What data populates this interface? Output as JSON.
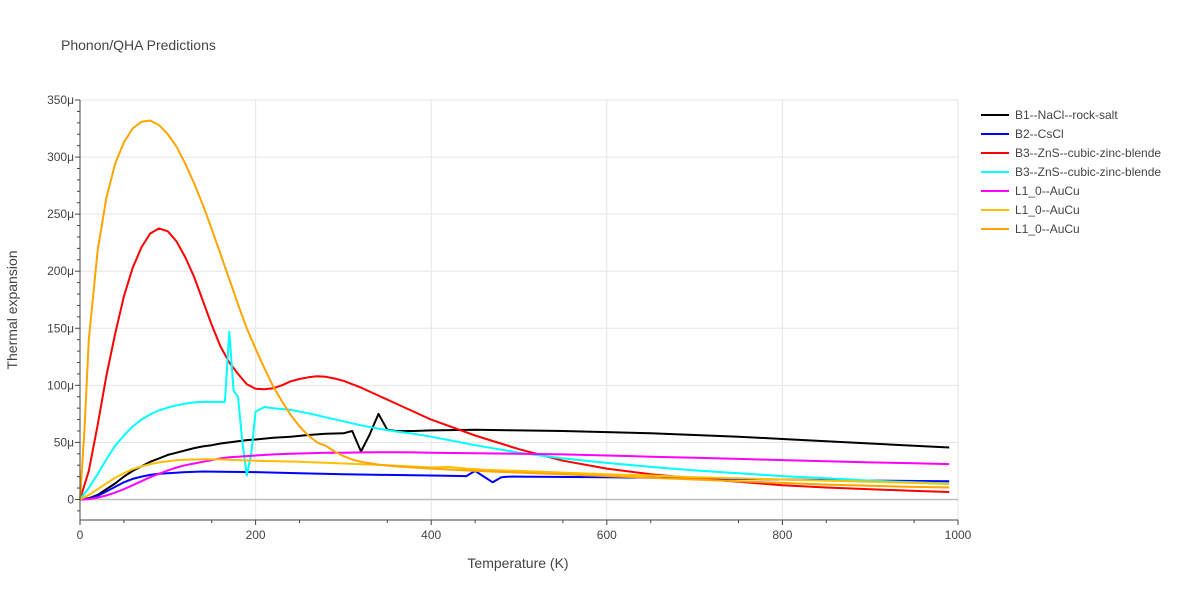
{
  "chart_data": {
    "type": "line",
    "title": "Phonon/QHA Predictions",
    "xlabel": "Temperature (K)",
    "ylabel": "Thermal expansion",
    "xlim": [
      0,
      1000
    ],
    "ylim": [
      -18,
      350
    ],
    "x_ticks": [
      0,
      200,
      400,
      600,
      800,
      1000
    ],
    "x_tick_labels": [
      "0",
      "200",
      "400",
      "600",
      "800",
      "1000"
    ],
    "y_ticks": [
      0,
      50,
      100,
      150,
      200,
      250,
      300,
      350
    ],
    "y_tick_labels": [
      "0",
      "50μ",
      "100μ",
      "150μ",
      "200μ",
      "250μ",
      "300μ",
      "350μ"
    ],
    "grid": true,
    "legend_position": "top-right",
    "series": [
      {
        "name": "B1--NaCl--rock-salt",
        "color": "#000000",
        "x": [
          0,
          10,
          20,
          30,
          40,
          50,
          60,
          70,
          80,
          90,
          100,
          110,
          120,
          130,
          140,
          150,
          160,
          170,
          180,
          190,
          200,
          220,
          240,
          260,
          280,
          300,
          310,
          320,
          330,
          340,
          350,
          360,
          380,
          400,
          450,
          500,
          550,
          600,
          650,
          700,
          750,
          800,
          850,
          900,
          950,
          990
        ],
        "y": [
          0,
          1,
          4,
          9,
          14,
          20,
          25,
          29,
          33,
          36,
          39,
          41,
          43,
          45,
          46.5,
          47.5,
          49,
          50,
          51,
          52,
          52.5,
          54,
          55,
          56.5,
          57.5,
          58,
          60,
          42,
          57,
          75,
          61,
          60,
          60,
          60.5,
          61,
          60.5,
          60,
          59,
          58,
          56.5,
          55,
          53,
          51,
          49,
          47,
          45.5
        ]
      },
      {
        "name": "B2--CsCl",
        "color": "#0000ff",
        "x": [
          0,
          10,
          20,
          30,
          40,
          50,
          60,
          70,
          80,
          90,
          100,
          120,
          140,
          160,
          200,
          250,
          300,
          350,
          400,
          440,
          450,
          460,
          470,
          480,
          490,
          500,
          600,
          700,
          800,
          900,
          990
        ],
        "y": [
          0,
          0.5,
          3,
          7,
          11,
          15,
          18,
          20,
          21.5,
          22.5,
          23,
          24,
          24.5,
          24.3,
          24,
          23,
          22,
          21.5,
          21,
          20.5,
          25,
          20,
          15,
          19.5,
          20,
          20,
          19.5,
          18.5,
          17.5,
          16.5,
          16
        ]
      },
      {
        "name": "B3--ZnS--cubic-zinc-blende",
        "color": "#ff0000",
        "x": [
          0,
          10,
          20,
          30,
          40,
          50,
          60,
          70,
          80,
          90,
          100,
          110,
          120,
          130,
          140,
          150,
          160,
          170,
          180,
          190,
          200,
          210,
          220,
          230,
          240,
          250,
          260,
          270,
          280,
          290,
          300,
          320,
          340,
          360,
          380,
          400,
          450,
          500,
          550,
          600,
          650,
          700,
          750,
          800,
          850,
          900,
          950,
          990
        ],
        "y": [
          0,
          25,
          65,
          108,
          145,
          178,
          203,
          221,
          233,
          237.5,
          235,
          226,
          212,
          195,
          174,
          153,
          134,
          120,
          110,
          101,
          97,
          96.5,
          97.5,
          100,
          103.5,
          105.5,
          107,
          108,
          107.5,
          106,
          104,
          98,
          91,
          84,
          77,
          70,
          56,
          44,
          34,
          27,
          22,
          18.5,
          15.5,
          12.5,
          10.5,
          9,
          7.5,
          6.5
        ]
      },
      {
        "name": "B3--ZnS--cubic-zinc-blende",
        "color": "#00ffff",
        "x": [
          0,
          10,
          20,
          30,
          40,
          50,
          60,
          70,
          80,
          90,
          100,
          110,
          120,
          130,
          140,
          150,
          160,
          165,
          170,
          175,
          180,
          185,
          190,
          195,
          200,
          210,
          220,
          240,
          260,
          280,
          300,
          320,
          340,
          360,
          380,
          400,
          450,
          500,
          550,
          600,
          650,
          700,
          750,
          800,
          850,
          900,
          950,
          990
        ],
        "y": [
          0,
          10,
          22,
          35,
          47,
          56,
          64,
          70,
          74.5,
          78,
          80.5,
          82.5,
          84,
          85,
          85.5,
          85.5,
          85.5,
          85.5,
          147,
          95,
          90,
          50,
          21,
          40,
          77,
          81,
          80,
          78.5,
          75.5,
          72,
          68.5,
          65,
          62,
          59.5,
          57.5,
          55,
          47.5,
          41,
          36,
          32,
          28.5,
          25.5,
          23,
          20.5,
          18.5,
          16.5,
          15,
          14
        ]
      },
      {
        "name": "L1_0--AuCu",
        "color": "#ff00ff",
        "x": [
          0,
          10,
          20,
          30,
          40,
          50,
          60,
          70,
          80,
          90,
          100,
          110,
          120,
          130,
          140,
          150,
          160,
          170,
          180,
          190,
          200,
          220,
          240,
          260,
          280,
          300,
          320,
          340,
          360,
          380,
          400,
          450,
          500,
          550,
          600,
          650,
          700,
          750,
          800,
          850,
          900,
          950,
          990
        ],
        "y": [
          0,
          0.3,
          1.5,
          3.5,
          6,
          9,
          12.5,
          16,
          19.5,
          22.5,
          25.5,
          28,
          30,
          31.5,
          33,
          34.5,
          36,
          37,
          37.5,
          38,
          38.5,
          39.5,
          40,
          40.5,
          41,
          41,
          41.2,
          41.3,
          41.3,
          41.2,
          41,
          40.5,
          40,
          39.5,
          38.5,
          37.5,
          36.5,
          35.5,
          34.5,
          33.5,
          32.5,
          31.8,
          31
        ]
      },
      {
        "name": "L1_0--AuCu",
        "color": "#ffbf00",
        "x": [
          0,
          10,
          20,
          30,
          40,
          50,
          60,
          70,
          80,
          90,
          100,
          110,
          120,
          130,
          140,
          150,
          160,
          170,
          180,
          190,
          200,
          250,
          300,
          350,
          400,
          420,
          440,
          460,
          480,
          500,
          550,
          600,
          650,
          700,
          750,
          800,
          850,
          900,
          950,
          990
        ],
        "y": [
          0,
          4,
          9,
          14,
          19,
          23,
          26.5,
          29,
          31,
          32.5,
          33.5,
          34.3,
          34.8,
          35,
          35.2,
          35.2,
          35,
          34.8,
          34.5,
          34.2,
          34,
          33,
          31.5,
          30,
          28,
          28.5,
          27,
          26,
          25.5,
          25,
          23.5,
          22,
          21,
          19.5,
          18.5,
          17.5,
          16.5,
          15.5,
          14.5,
          13.5
        ]
      },
      {
        "name": "L1_0--AuCu",
        "color": "#ffa500",
        "x": [
          0,
          5,
          10,
          20,
          30,
          40,
          50,
          60,
          70,
          80,
          90,
          100,
          110,
          120,
          130,
          140,
          150,
          160,
          170,
          180,
          190,
          200,
          210,
          220,
          230,
          240,
          250,
          260,
          270,
          280,
          290,
          300,
          310,
          320,
          340,
          360,
          380,
          400,
          450,
          500,
          550,
          600,
          650,
          700,
          750,
          800,
          850,
          900,
          950,
          990
        ],
        "y": [
          0,
          60,
          140,
          218,
          264,
          294,
          313,
          325,
          331,
          332,
          328,
          320,
          309,
          294,
          277,
          258,
          237,
          215,
          193,
          171,
          150,
          132,
          115,
          99,
          86,
          74,
          64,
          56,
          50,
          47,
          42,
          38,
          35,
          33,
          30.5,
          29,
          28,
          27,
          25,
          23.5,
          22,
          20.5,
          19,
          17.5,
          16,
          14.5,
          13,
          12,
          11,
          10.5
        ]
      }
    ]
  }
}
